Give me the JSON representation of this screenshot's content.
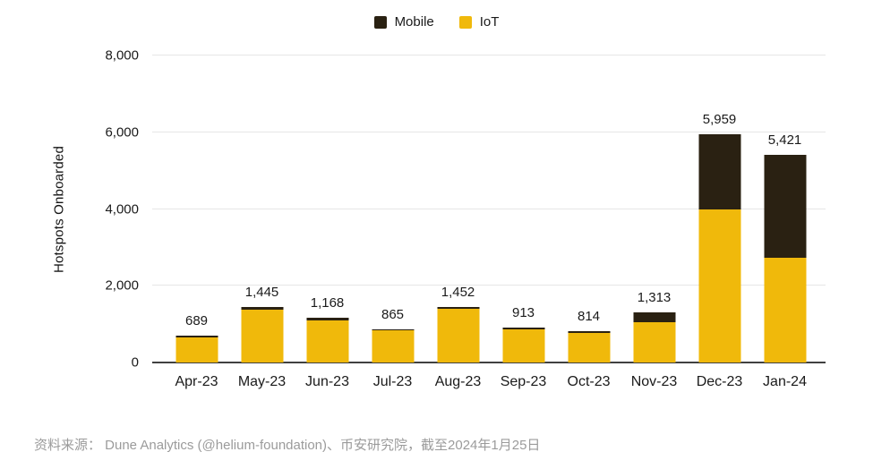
{
  "legend": {
    "items": [
      {
        "label": "Mobile",
        "color": "#2A2112"
      },
      {
        "label": "IoT",
        "color": "#F0B90B"
      }
    ]
  },
  "chart_data": {
    "type": "bar",
    "subtype": "stacked",
    "title": "",
    "ylabel": "Hotspots Onboarded",
    "xlabel": "",
    "ylim": [
      0,
      8000
    ],
    "yticks": [
      0,
      2000,
      4000,
      6000,
      8000
    ],
    "ytick_labels": [
      "0",
      "2,000",
      "4,000",
      "6,000",
      "8,000"
    ],
    "grid": true,
    "legend_position": "top",
    "categories": [
      "Apr-23",
      "May-23",
      "Jun-23",
      "Jul-23",
      "Aug-23",
      "Sep-23",
      "Oct-23",
      "Nov-23",
      "Dec-23",
      "Jan-24"
    ],
    "series": [
      {
        "name": "IoT",
        "color": "#F0B90B",
        "values": [
          649,
          1381,
          1097,
          829,
          1404,
          865,
          766,
          1043,
          3980,
          2740
        ]
      },
      {
        "name": "Mobile",
        "color": "#2A2112",
        "values": [
          40,
          64,
          71,
          36,
          48,
          48,
          48,
          270,
          1979,
          2681
        ]
      }
    ],
    "totals": [
      689,
      1445,
      1168,
      865,
      1452,
      913,
      814,
      1313,
      5959,
      5421
    ],
    "total_labels": [
      "689",
      "1,445",
      "1,168",
      "865",
      "1,452",
      "913",
      "814",
      "1,313",
      "5,959",
      "5,421"
    ]
  },
  "colors": {
    "grid": "#E6E6E6",
    "axis": "#404040",
    "text": "#1A1A1A",
    "source": "#9B9B9B"
  },
  "source": {
    "text": "资料来源： Dune Analytics (@helium-foundation)、币安研究院，截至2024年1月25日"
  }
}
